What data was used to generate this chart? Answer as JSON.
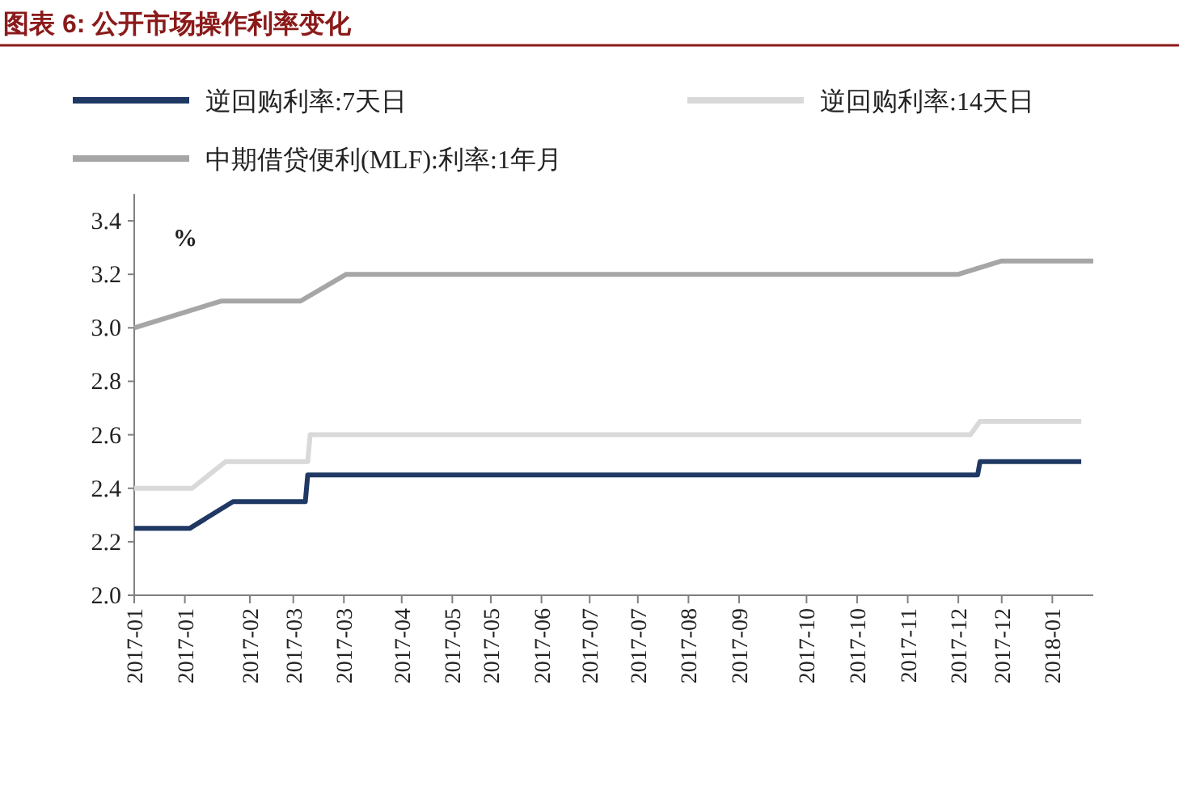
{
  "chart_data": {
    "type": "line",
    "title": "图表 6: 公开市场操作利率变化",
    "ylabel": "%",
    "xlim": [
      "2017-01-03",
      "2018-02-05"
    ],
    "ylim": [
      2.0,
      3.5
    ],
    "yticks": [
      {
        "value": 2.0,
        "label": "2.0"
      },
      {
        "value": 2.2,
        "label": "2.2"
      },
      {
        "value": 2.4,
        "label": "2.4"
      },
      {
        "value": 2.6,
        "label": "2.6"
      },
      {
        "value": 2.8,
        "label": "2.8"
      },
      {
        "value": 3.0,
        "label": "3.0"
      },
      {
        "value": 3.2,
        "label": "3.2"
      },
      {
        "value": 3.4,
        "label": "3.4"
      }
    ],
    "xticks": [
      {
        "value": "2017-01-03",
        "label": "2017-01"
      },
      {
        "value": "2017-01-24",
        "label": "2017-01"
      },
      {
        "value": "2017-02-20",
        "label": "2017-02"
      },
      {
        "value": "2017-03-10",
        "label": "2017-03"
      },
      {
        "value": "2017-03-31",
        "label": "2017-03"
      },
      {
        "value": "2017-04-24",
        "label": "2017-04"
      },
      {
        "value": "2017-05-15",
        "label": "2017-05"
      },
      {
        "value": "2017-05-31",
        "label": "2017-05"
      },
      {
        "value": "2017-06-21",
        "label": "2017-06"
      },
      {
        "value": "2017-07-11",
        "label": "2017-07"
      },
      {
        "value": "2017-07-31",
        "label": "2017-07"
      },
      {
        "value": "2017-08-21",
        "label": "2017-08"
      },
      {
        "value": "2017-09-11",
        "label": "2017-09"
      },
      {
        "value": "2017-10-09",
        "label": "2017-10"
      },
      {
        "value": "2017-10-30",
        "label": "2017-10"
      },
      {
        "value": "2017-11-20",
        "label": "2017-11"
      },
      {
        "value": "2017-12-11",
        "label": "2017-12"
      },
      {
        "value": "2017-12-29",
        "label": "2017-12"
      },
      {
        "value": "2018-01-19",
        "label": "2018-01"
      }
    ],
    "grid": false,
    "legend": "top",
    "line_style": "solid",
    "series": [
      {
        "name": "逆回购利率:7天日",
        "color": "#1f3864",
        "x": [
          "2017-01-03",
          "2017-01-26",
          "2017-02-13",
          "2017-03-15",
          "2017-03-16",
          "2017-12-19",
          "2017-12-20",
          "2018-01-31"
        ],
        "values": [
          2.25,
          2.25,
          2.35,
          2.35,
          2.45,
          2.45,
          2.5,
          2.5
        ]
      },
      {
        "name": "逆回购利率:14天日",
        "color": "#d9d9d9",
        "x": [
          "2017-01-03",
          "2017-01-27",
          "2017-02-10",
          "2017-03-16",
          "2017-03-17",
          "2017-12-16",
          "2017-12-20",
          "2018-01-31"
        ],
        "values": [
          2.4,
          2.4,
          2.5,
          2.5,
          2.6,
          2.6,
          2.65,
          2.65
        ]
      },
      {
        "name": "中期借贷便利(MLF):利率:1年月",
        "color": "#a6a6a6",
        "x": [
          "2017-01-03",
          "2017-02-08",
          "2017-03-13",
          "2017-04-01",
          "2017-12-11",
          "2017-12-29",
          "2018-02-05"
        ],
        "values": [
          3.0,
          3.1,
          3.1,
          3.2,
          3.2,
          3.25,
          3.25
        ]
      }
    ]
  }
}
